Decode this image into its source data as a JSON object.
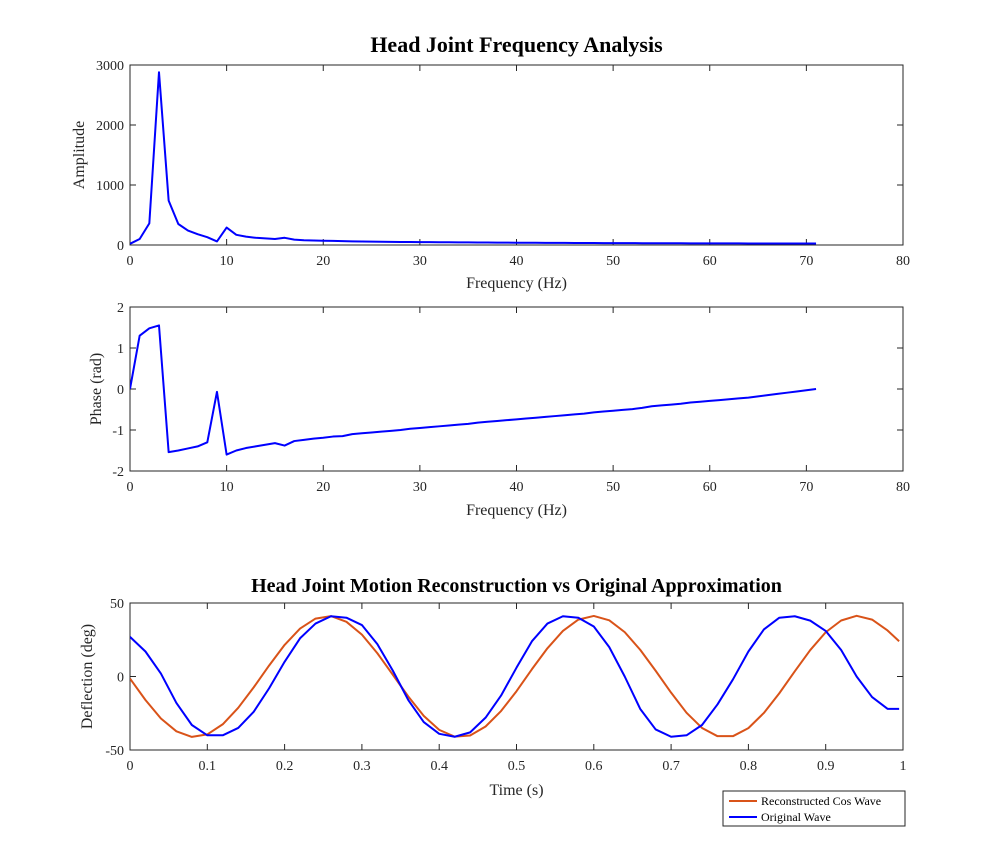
{
  "chart_data": [
    {
      "type": "line",
      "title": "Head Joint Frequency Analysis",
      "xlabel": "Frequency (Hz)",
      "ylabel": "Amplitude",
      "xlim": [
        0,
        80
      ],
      "ylim": [
        0,
        3000
      ],
      "xticks": [
        0,
        10,
        20,
        30,
        40,
        50,
        60,
        70,
        80
      ],
      "yticks": [
        0,
        1000,
        2000,
        3000
      ],
      "grid": false,
      "series": [
        {
          "color": "#0000ff",
          "x": [
            0,
            1,
            2,
            3,
            4,
            5,
            6,
            7,
            8,
            9,
            10,
            11,
            12,
            13,
            14,
            15,
            16,
            17,
            18,
            19,
            20,
            21,
            22,
            23,
            24,
            25,
            26,
            27,
            28,
            29,
            30,
            31,
            32,
            33,
            34,
            35,
            36,
            37,
            38,
            39,
            40,
            41,
            42,
            43,
            44,
            45,
            46,
            47,
            48,
            49,
            50,
            51,
            52,
            53,
            54,
            55,
            56,
            57,
            58,
            59,
            60,
            61,
            62,
            63,
            64,
            65,
            66,
            67,
            68,
            69,
            70,
            71
          ],
          "y": [
            20,
            100,
            360,
            2880,
            740,
            350,
            240,
            180,
            130,
            60,
            290,
            170,
            140,
            120,
            110,
            100,
            120,
            90,
            80,
            75,
            70,
            68,
            65,
            60,
            58,
            56,
            54,
            52,
            50,
            49,
            48,
            47,
            46,
            45,
            44,
            43,
            42,
            41,
            40,
            39,
            38,
            37,
            37,
            36,
            35,
            35,
            34,
            33,
            33,
            32,
            32,
            31,
            31,
            30,
            30,
            30,
            29,
            29,
            28,
            28,
            28,
            27,
            27,
            27,
            26,
            26,
            26,
            25,
            25,
            25,
            25,
            24
          ]
        }
      ]
    },
    {
      "type": "line",
      "title": "",
      "xlabel": "Frequency (Hz)",
      "ylabel": "Phase (rad)",
      "xlim": [
        0,
        80
      ],
      "ylim": [
        -2,
        2
      ],
      "xticks": [
        0,
        10,
        20,
        30,
        40,
        50,
        60,
        70,
        80
      ],
      "yticks": [
        -2,
        -1,
        0,
        1,
        2
      ],
      "grid": false,
      "series": [
        {
          "color": "#0000ff",
          "x": [
            0,
            1,
            2,
            3,
            4,
            5,
            6,
            7,
            8,
            9,
            10,
            11,
            12,
            13,
            14,
            15,
            16,
            17,
            18,
            19,
            20,
            21,
            22,
            23,
            24,
            25,
            26,
            27,
            28,
            29,
            30,
            31,
            32,
            33,
            34,
            35,
            36,
            37,
            38,
            39,
            40,
            41,
            42,
            43,
            44,
            45,
            46,
            47,
            48,
            49,
            50,
            51,
            52,
            53,
            54,
            55,
            56,
            57,
            58,
            59,
            60,
            61,
            62,
            63,
            64,
            65,
            66,
            67,
            68,
            69,
            70,
            71
          ],
          "y": [
            0,
            1.3,
            1.48,
            1.55,
            -1.54,
            -1.5,
            -1.45,
            -1.4,
            -1.3,
            -0.07,
            -1.6,
            -1.5,
            -1.44,
            -1.4,
            -1.36,
            -1.32,
            -1.38,
            -1.27,
            -1.24,
            -1.21,
            -1.19,
            -1.16,
            -1.15,
            -1.1,
            -1.08,
            -1.06,
            -1.04,
            -1.02,
            -1.0,
            -0.97,
            -0.95,
            -0.93,
            -0.91,
            -0.89,
            -0.87,
            -0.85,
            -0.82,
            -0.8,
            -0.78,
            -0.76,
            -0.74,
            -0.72,
            -0.7,
            -0.68,
            -0.66,
            -0.64,
            -0.62,
            -0.6,
            -0.57,
            -0.55,
            -0.53,
            -0.51,
            -0.49,
            -0.46,
            -0.42,
            -0.4,
            -0.38,
            -0.36,
            -0.33,
            -0.31,
            -0.29,
            -0.27,
            -0.25,
            -0.23,
            -0.21,
            -0.18,
            -0.15,
            -0.12,
            -0.09,
            -0.06,
            -0.03,
            0
          ]
        }
      ]
    },
    {
      "type": "line",
      "title": "Head Joint Motion Reconstruction vs Original Approximation",
      "xlabel": "Time (s)",
      "ylabel": "Deflection (deg)",
      "xlim": [
        0,
        1
      ],
      "ylim": [
        -50,
        50
      ],
      "xticks": [
        0,
        0.1,
        0.2,
        0.3,
        0.4,
        0.5,
        0.6,
        0.7,
        0.8,
        0.9,
        1
      ],
      "yticks": [
        -50,
        0,
        50
      ],
      "grid": false,
      "legend": "bottom-right, outside",
      "series": [
        {
          "name": "Reconstructed Cos Wave",
          "color": "#d95319",
          "x": [
            0,
            0.02,
            0.04,
            0.06,
            0.08,
            0.1,
            0.12,
            0.14,
            0.16,
            0.18,
            0.2,
            0.22,
            0.24,
            0.26,
            0.28,
            0.3,
            0.32,
            0.34,
            0.36,
            0.38,
            0.4,
            0.42,
            0.44,
            0.46,
            0.48,
            0.5,
            0.52,
            0.54,
            0.56,
            0.58,
            0.6,
            0.62,
            0.64,
            0.66,
            0.68,
            0.7,
            0.72,
            0.74,
            0.76,
            0.78,
            0.8,
            0.82,
            0.84,
            0.86,
            0.88,
            0.9,
            0.92,
            0.94,
            0.96,
            0.98,
            0.995
          ],
          "y": [
            -1.4,
            -16,
            -28.6,
            -37.3,
            -41.1,
            -39.4,
            -32.5,
            -21.3,
            -7.4,
            7.5,
            21.5,
            32.6,
            39.4,
            41.1,
            37.2,
            28.5,
            15.8,
            1.2,
            -13.6,
            -26.8,
            -36.3,
            -40.9,
            -40.1,
            -34,
            -23.5,
            -10,
            5,
            19.2,
            31,
            38.7,
            41.2,
            38.2,
            30.2,
            18.2,
            3.9,
            -11,
            -24.7,
            -35,
            -40.6,
            -40.6,
            -35.1,
            -24.8,
            -11.4,
            3.5,
            18,
            30.1,
            38.1,
            41.3,
            38.7,
            31.3,
            24
          ]
        },
        {
          "name": "Original Wave",
          "color": "#0000ff",
          "x": [
            0,
            0.02,
            0.04,
            0.06,
            0.08,
            0.1,
            0.12,
            0.14,
            0.16,
            0.18,
            0.2,
            0.22,
            0.24,
            0.26,
            0.28,
            0.3,
            0.32,
            0.34,
            0.36,
            0.38,
            0.4,
            0.42,
            0.44,
            0.46,
            0.48,
            0.5,
            0.52,
            0.54,
            0.56,
            0.58,
            0.6,
            0.62,
            0.64,
            0.66,
            0.68,
            0.7,
            0.72,
            0.74,
            0.76,
            0.78,
            0.8,
            0.82,
            0.84,
            0.86,
            0.88,
            0.9,
            0.92,
            0.94,
            0.96,
            0.98,
            0.995
          ],
          "y": [
            27,
            17,
            2,
            -18,
            -33,
            -40,
            -40,
            -35,
            -24,
            -8,
            10,
            26,
            36,
            41,
            40,
            35,
            22,
            4,
            -16,
            -31,
            -39,
            -41,
            -38,
            -28,
            -13,
            6,
            24,
            36,
            41,
            40,
            34,
            20,
            0,
            -22,
            -36,
            -41,
            -40,
            -33,
            -19,
            -2,
            17,
            32,
            40,
            41,
            38,
            31,
            18,
            0,
            -14,
            -22,
            -22
          ]
        }
      ]
    }
  ]
}
